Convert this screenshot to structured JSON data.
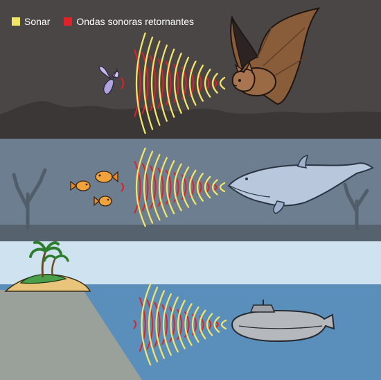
{
  "legend": {
    "sonar": {
      "label": "Sonar",
      "color": "#f2e66a"
    },
    "return": {
      "label": "Ondas sonoras retornantes",
      "color": "#e0202a"
    }
  },
  "panels": [
    {
      "id": "air",
      "emitter": "bat",
      "target": "moth",
      "background": "#4a4544"
    },
    {
      "id": "underwater",
      "emitter": "dolphin",
      "target": "fish",
      "background": "#6c7d8d"
    },
    {
      "id": "ocean",
      "emitter": "submarine",
      "target": "island",
      "background": "#5a8fb8"
    }
  ]
}
